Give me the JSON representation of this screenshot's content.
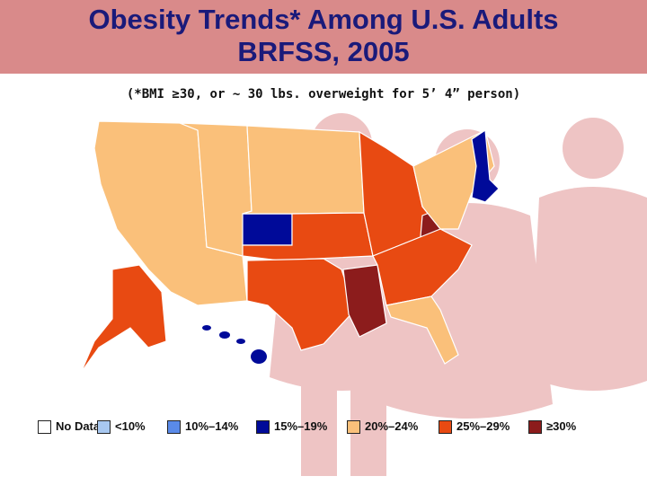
{
  "title": {
    "line1": "Obesity Trends* Among U.S. Adults",
    "line2": "BRFSS, 2005"
  },
  "subtitle": "(*BMI ≥30, or ~ 30 lbs. overweight for 5’ 4” person)",
  "colors": {
    "band": "#d98a8a",
    "title_text": "#1a1a7a",
    "no_data": "#ffffff",
    "lt10": "#a8c8f0",
    "c10_14": "#5a8ae8",
    "c15_19": "#000a99",
    "c20_24": "#fac07a",
    "c25_29": "#e84a12",
    "ge30": "#8c1c1c",
    "figure": "#eec4c4"
  },
  "legend": {
    "items": [
      {
        "label": "No Data",
        "swatch": "no_data"
      },
      {
        "label": "<10%",
        "swatch": "lt10"
      },
      {
        "label": "10%–14%",
        "swatch": "c10_14"
      },
      {
        "label": "15%–19%",
        "swatch": "c15_19"
      },
      {
        "label": "20%–24%",
        "swatch": "c20_24"
      },
      {
        "label": "25%–29%",
        "swatch": "c25_29"
      },
      {
        "label": "≥30%",
        "swatch": "ge30"
      }
    ]
  },
  "map_data": {
    "category_by_region": {
      "west": "c20_24",
      "mountain": "c20_24",
      "colorado": "c15_19",
      "plains_north": "c20_24",
      "plains_south": "c25_29",
      "texas": "c25_29",
      "midwest": "c25_29",
      "southeast": "c25_29",
      "deep_south": "ge30",
      "west_virginia": "ge30",
      "florida": "c20_24",
      "northeast": "c20_24",
      "new_england": "c15_19",
      "alaska": "c25_29",
      "hawaii": "c15_19"
    }
  }
}
